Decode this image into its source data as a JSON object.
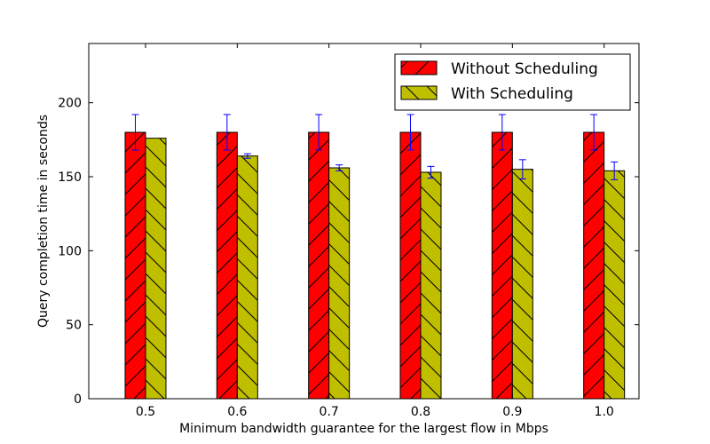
{
  "chart_data": {
    "type": "bar",
    "title": "",
    "xlabel": "Minimum bandwidth guarantee for the largest flow in Mbps",
    "ylabel": "Query completion time in seconds",
    "categories": [
      "0.5",
      "0.6",
      "0.7",
      "0.8",
      "0.9",
      "1.0"
    ],
    "ylim": [
      0,
      240
    ],
    "yticks": [
      "0",
      "50",
      "100",
      "150",
      "200"
    ],
    "series": [
      {
        "name": "Without Scheduling",
        "color": "#ff0000",
        "hatch": "forward-diagonal",
        "values": [
          180,
          180,
          180,
          180,
          180,
          180
        ],
        "errors": [
          12,
          12,
          12,
          12,
          12,
          12
        ]
      },
      {
        "name": "With Scheduling",
        "color": "#bfbf00",
        "hatch": "back-diagonal",
        "values": [
          176,
          164,
          156,
          153,
          155,
          154
        ],
        "errors": [
          0,
          1.5,
          2,
          4,
          6.5,
          6
        ]
      }
    ],
    "error_bar_color": "#0000ff",
    "legend_position": "top-right",
    "grid": false
  }
}
